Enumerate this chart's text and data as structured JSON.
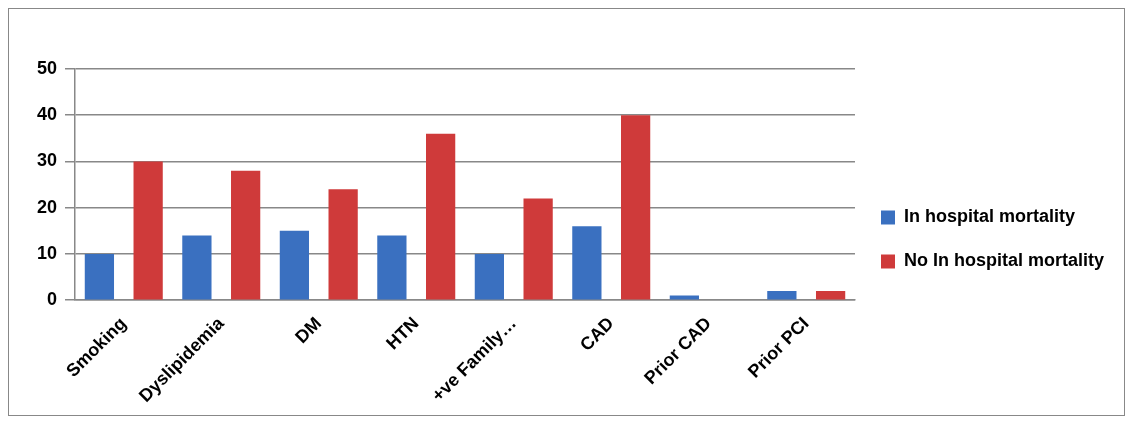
{
  "chart_data": {
    "type": "bar",
    "categories": [
      "Smoking",
      "Dyslipidemia",
      "DM",
      "HTN",
      "+ve Family…",
      "CAD",
      "Prior CAD",
      "Prior PCI"
    ],
    "series": [
      {
        "name": "In hospital mortality",
        "color": "#3a70c0",
        "values": [
          10,
          14,
          15,
          14,
          10,
          16,
          1,
          2
        ]
      },
      {
        "name": "No In hospital mortality",
        "color": "#cf3a3a",
        "values": [
          30,
          28,
          24,
          36,
          22,
          40,
          0,
          2
        ]
      }
    ],
    "ylim": [
      0,
      50
    ],
    "yticks": [
      0,
      10,
      20,
      30,
      40,
      50
    ],
    "grid": "y",
    "legend": "right"
  }
}
